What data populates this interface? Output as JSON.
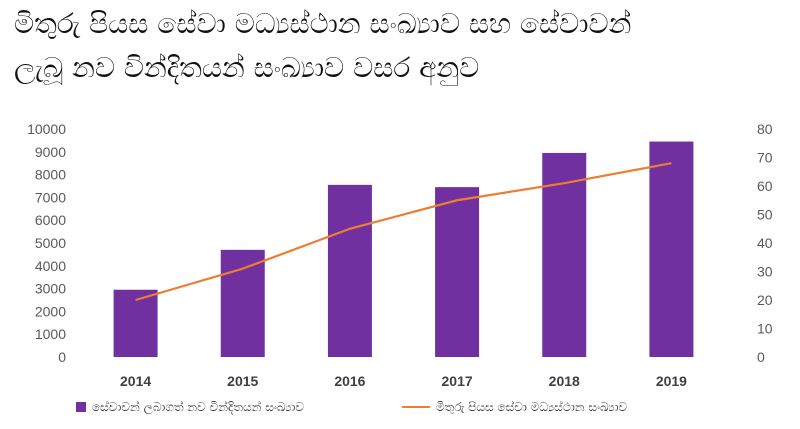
{
  "title_lines": [
    "මිතුරු පියස සේවා මධ්‍යස්ථාන සංඛ්‍යාව සහ සේවාවන්",
    "ලැබූ නව වින්දිතයන් සංඛ්‍යාව වසර අනුව"
  ],
  "chart_data": {
    "type": "bar",
    "categories": [
      "2014",
      "2015",
      "2016",
      "2017",
      "2018",
      "2019"
    ],
    "series": [
      {
        "name": "සේවාවන් ලබාගත් නව වින්දිතයන් සංඛ්‍යාව",
        "type": "bar",
        "axis": "left",
        "color": "#7030a0",
        "values": [
          2950,
          4700,
          7550,
          7450,
          8950,
          9450
        ]
      },
      {
        "name": "මිතුරු පියස සේවා මධ්‍යස්ථාන සංඛ්‍යාව",
        "type": "line",
        "axis": "right",
        "color": "#ed7d31",
        "values": [
          20,
          31,
          45,
          55,
          61,
          68
        ]
      }
    ],
    "y_left": {
      "min": 0,
      "max": 10000,
      "step": 1000,
      "ticks": [
        "0",
        "1000",
        "2000",
        "3000",
        "4000",
        "5000",
        "6000",
        "7000",
        "8000",
        "9000",
        "10000"
      ]
    },
    "y_right": {
      "min": 0,
      "max": 80,
      "step": 10,
      "ticks": [
        "0",
        "10",
        "20",
        "30",
        "40",
        "50",
        "60",
        "70",
        "80"
      ]
    },
    "grid": false,
    "legend_position": "bottom"
  }
}
